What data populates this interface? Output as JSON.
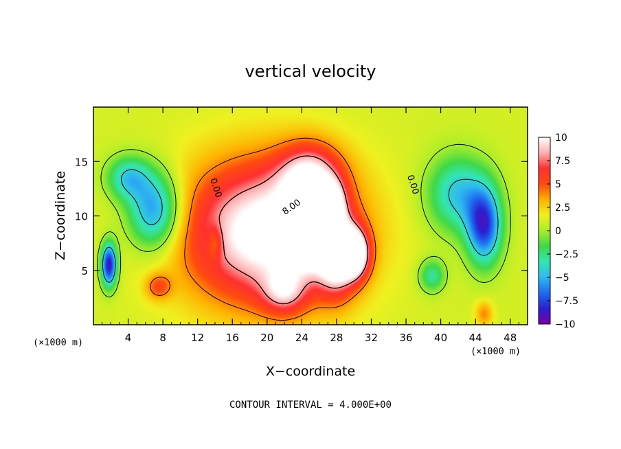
{
  "chart_data": {
    "type": "heatmap",
    "title": "vertical velocity",
    "xlabel": "X−coordinate",
    "ylabel": "Z−coordinate",
    "x_unit_left": "(×1000 m)",
    "x_unit_right": "(×1000 m)",
    "xlim": [
      0,
      50
    ],
    "ylim": [
      0,
      20
    ],
    "x_ticks": [
      4,
      8,
      12,
      16,
      20,
      24,
      28,
      32,
      36,
      40,
      44,
      48
    ],
    "y_ticks": [
      5,
      10,
      15
    ],
    "colorbar": {
      "vmin": -10,
      "vmax": 10,
      "tick_values": [
        10,
        7.5,
        5,
        2.5,
        0,
        -2.5,
        -5,
        -7.5,
        -10
      ],
      "tick_labels": [
        "10",
        "7.5",
        "5",
        "2.5",
        "0",
        "−2.5",
        "−5",
        "−7.5",
        "−10"
      ],
      "colors": [
        "#7a00a8",
        "#2a1fd0",
        "#1e6cf0",
        "#2fb8f0",
        "#33e6b4",
        "#3fd84a",
        "#a8ee2a",
        "#f0f020",
        "#ffb000",
        "#ff4a10",
        "#ff3030",
        "#ffb0b0",
        "#ffffff"
      ]
    },
    "contour_labels": [
      {
        "text": "0.00",
        "x": 13.8,
        "y": 12.5
      },
      {
        "text": "0.00",
        "x": 36.5,
        "y": 12.8
      },
      {
        "text": "8.00",
        "x": 23.0,
        "y": 10.6
      }
    ],
    "features": [
      {
        "amp": 10.5,
        "x": 20.0,
        "z": 8.5,
        "sx": 9.5,
        "sz": 6.5
      },
      {
        "amp": 7.0,
        "x": 25.0,
        "z": 13.5,
        "sx": 3.5,
        "sz": 3.0
      },
      {
        "amp": 8.0,
        "x": 24.5,
        "z": 8.0,
        "sx": 2.0,
        "sz": 2.5
      },
      {
        "amp": 9.0,
        "x": 28.0,
        "z": 6.5,
        "sx": 2.2,
        "sz": 3.5
      },
      {
        "amp": 9.0,
        "x": 30.2,
        "z": 6.5,
        "sx": 1.6,
        "sz": 2.2
      },
      {
        "amp": 6.0,
        "x": 27.5,
        "z": 11.0,
        "sx": 1.4,
        "sz": 2.0
      },
      {
        "amp": 4.5,
        "x": 22.0,
        "z": 3.0,
        "sx": 2.5,
        "sz": 2.0
      },
      {
        "amp": -7.5,
        "x": 7.0,
        "z": 10.5,
        "sx": 3.0,
        "sz": 3.5
      },
      {
        "amp": -5.0,
        "x": 4.0,
        "z": 13.5,
        "sx": 2.5,
        "sz": 2.0
      },
      {
        "amp": -10.0,
        "x": 1.8,
        "z": 5.5,
        "sx": 0.9,
        "sz": 2.0
      },
      {
        "amp": -8.5,
        "x": 45.0,
        "z": 9.0,
        "sx": 2.0,
        "sz": 3.5
      },
      {
        "amp": -5.5,
        "x": 42.0,
        "z": 12.0,
        "sx": 3.5,
        "sz": 3.5
      },
      {
        "amp": -4.0,
        "x": 39.0,
        "z": 4.5,
        "sx": 1.5,
        "sz": 1.5
      },
      {
        "amp": -3.0,
        "x": 14.0,
        "z": 7.5,
        "sx": 0.8,
        "sz": 1.5
      },
      {
        "amp": 3.5,
        "x": 7.5,
        "z": 3.5,
        "sx": 1.5,
        "sz": 1.2
      },
      {
        "amp": 3.0,
        "x": 45.0,
        "z": 1.0,
        "sx": 1.0,
        "sz": 1.2
      }
    ]
  },
  "footer": {
    "contour_interval": "CONTOUR INTERVAL = 4.000E+00"
  }
}
